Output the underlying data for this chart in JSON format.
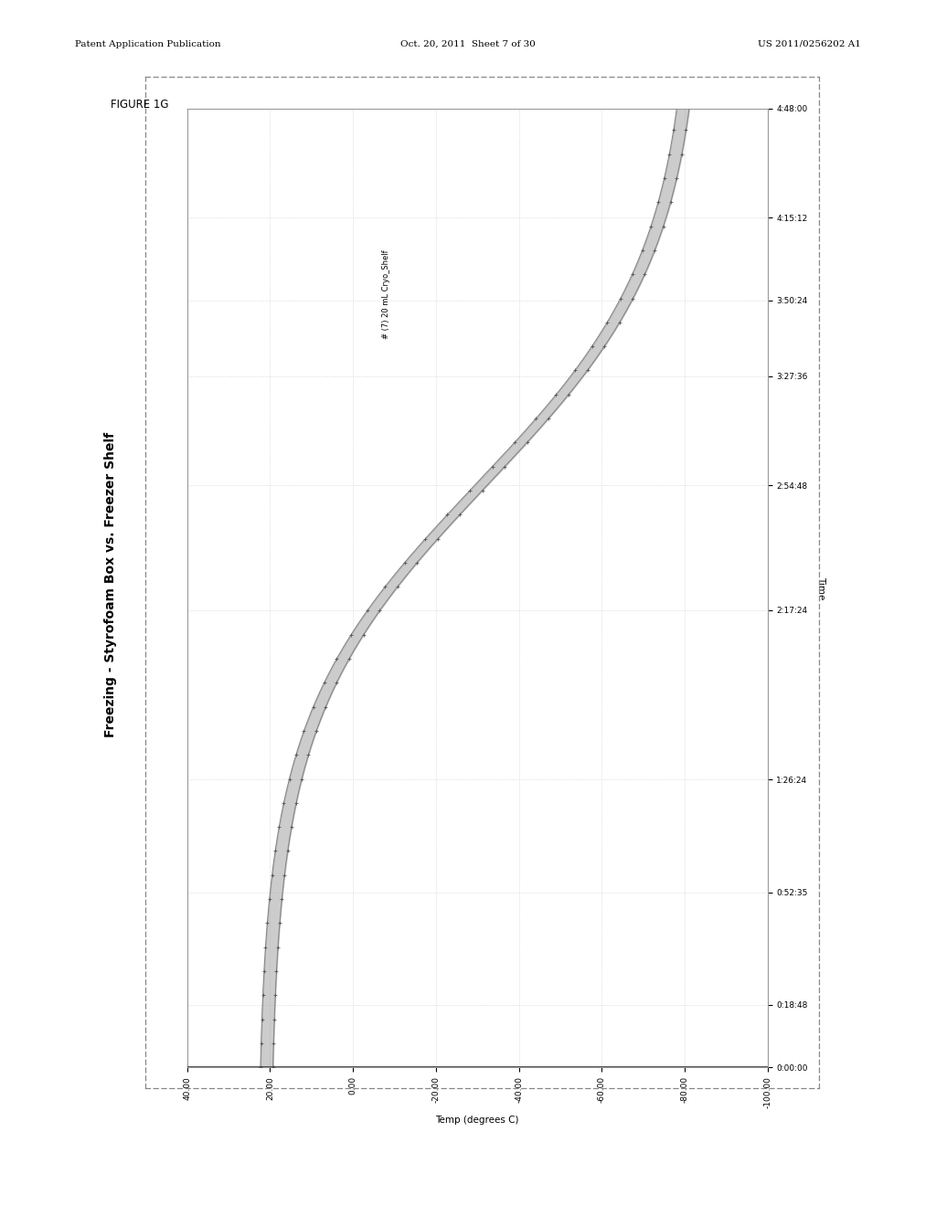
{
  "figure_label": "FIGURE 1G",
  "chart_title": "Freezing - Styrofoam Box vs. Freezer Shelf",
  "xlabel": "Temp (degrees C)",
  "ylabel": "Time",
  "legend_label": "# (7) 20 mL Cryo_Shelf",
  "x_tick_vals": [
    40,
    20,
    0,
    -20,
    -40,
    -60,
    -80,
    -100
  ],
  "x_tick_labels": [
    "40.00",
    "20.00",
    "0.00",
    "-20.00",
    "-40.00",
    "-60.00",
    "-80.00",
    "-100.00"
  ],
  "y_tick_labels": [
    "0:00:00",
    "0:18:48",
    "0:52:35",
    "1:26:24",
    "2:17:24",
    "2:54:48",
    "3:27:36",
    "3:50:24",
    "4:15:12",
    "4:48:00"
  ],
  "y_tick_secs": [
    0,
    1128,
    3155,
    5184,
    8244,
    10488,
    12456,
    13824,
    15312,
    17280
  ],
  "background_color": "#ffffff",
  "plot_bg_color": "#ffffff",
  "line_color": "#888888",
  "fill_color": "#aaaaaa",
  "page_header_left": "Patent Application Publication",
  "page_header_mid": "Oct. 20, 2011  Sheet 7 of 30",
  "page_header_right": "US 2011/0256202 A1",
  "page_width": 10.24,
  "page_height": 13.2
}
